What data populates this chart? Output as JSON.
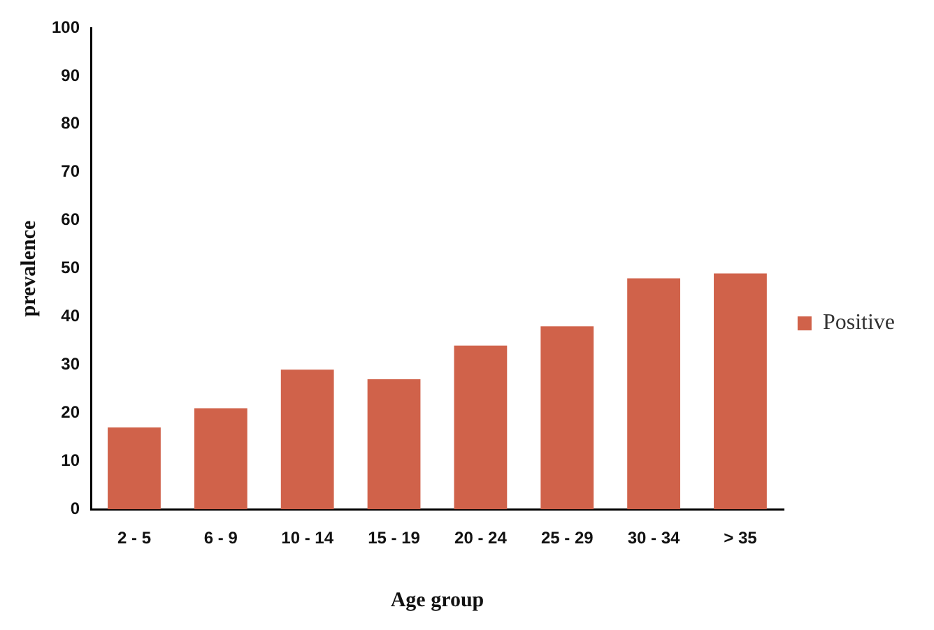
{
  "chart_data": {
    "type": "bar",
    "xlabel": "Age group",
    "ylabel": "prevalence",
    "categories": [
      "2 - 5",
      "6 - 9",
      "10 - 14",
      "15 - 19",
      "20 - 24",
      "25 - 29",
      "30 - 34",
      "> 35"
    ],
    "series": [
      {
        "name": "Positive",
        "color": "#d0624a",
        "values": [
          17,
          21,
          29,
          27,
          34,
          38,
          48,
          49
        ]
      }
    ],
    "ylim": [
      0,
      100
    ],
    "yticks": [
      0,
      10,
      20,
      30,
      40,
      50,
      60,
      70,
      80,
      90,
      100
    ],
    "grid": false,
    "legend": "right"
  }
}
